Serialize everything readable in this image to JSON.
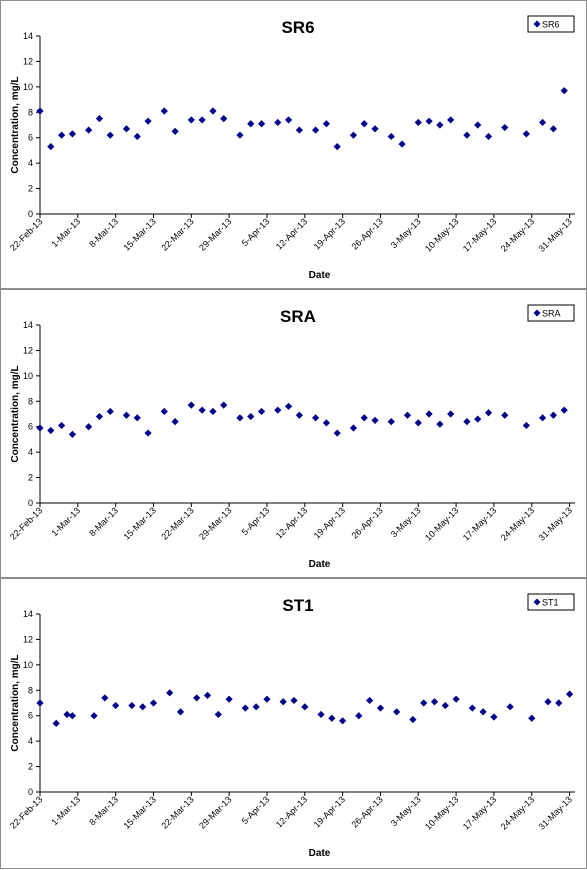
{
  "chart_data": [
    {
      "type": "scatter",
      "title": "SR6",
      "xlabel": "Date",
      "ylabel": "Concentration, mg/L",
      "ylim": [
        0,
        14
      ],
      "yticks": [
        "0",
        "2",
        "4",
        "6",
        "8",
        "10",
        "12",
        "14"
      ],
      "x_tick_labels": [
        "22-Feb-13",
        "1-Mar-13",
        "8-Mar-13",
        "15-Mar-13",
        "22-Mar-13",
        "29-Mar-13",
        "5-Apr-13",
        "12-Apr-13",
        "19-Apr-13",
        "26-Apr-13",
        "3-May-13",
        "10-May-13",
        "17-May-13",
        "24-May-13",
        "31-May-13"
      ],
      "xlim": [
        "2013-02-22",
        "2013-06-01"
      ],
      "grid": false,
      "legend_position": "top-right",
      "series": [
        {
          "name": "SR6",
          "color": "#00008b",
          "marker": "diamond",
          "x": [
            "2013-02-22",
            "2013-02-24",
            "2013-02-26",
            "2013-02-28",
            "2013-03-03",
            "2013-03-05",
            "2013-03-07",
            "2013-03-10",
            "2013-03-12",
            "2013-03-14",
            "2013-03-17",
            "2013-03-19",
            "2013-03-22",
            "2013-03-24",
            "2013-03-26",
            "2013-03-28",
            "2013-03-31",
            "2013-04-02",
            "2013-04-04",
            "2013-04-07",
            "2013-04-09",
            "2013-04-11",
            "2013-04-14",
            "2013-04-16",
            "2013-04-18",
            "2013-04-21",
            "2013-04-23",
            "2013-04-25",
            "2013-04-28",
            "2013-04-30",
            "2013-05-03",
            "2013-05-05",
            "2013-05-07",
            "2013-05-09",
            "2013-05-12",
            "2013-05-14",
            "2013-05-16",
            "2013-05-19",
            "2013-05-23",
            "2013-05-26",
            "2013-05-28",
            "2013-05-30"
          ],
          "y": [
            8.1,
            5.3,
            6.2,
            6.3,
            6.6,
            7.5,
            6.2,
            6.7,
            6.1,
            7.3,
            8.1,
            6.5,
            7.4,
            7.4,
            8.1,
            7.5,
            6.2,
            7.1,
            7.1,
            7.2,
            7.4,
            6.6,
            6.6,
            7.1,
            5.3,
            6.2,
            7.1,
            6.7,
            6.1,
            5.5,
            7.2,
            7.3,
            7.0,
            7.4,
            6.2,
            7.0,
            6.1,
            6.8,
            6.3,
            7.2,
            6.7,
            9.7
          ]
        }
      ]
    },
    {
      "type": "scatter",
      "title": "SRA",
      "xlabel": "Date",
      "ylabel": "Concentration, mg/L",
      "ylim": [
        0,
        14
      ],
      "yticks": [
        "0",
        "2",
        "4",
        "6",
        "8",
        "10",
        "12",
        "14"
      ],
      "x_tick_labels": [
        "22-Feb-13",
        "1-Mar-13",
        "8-Mar-13",
        "15-Mar-13",
        "22-Mar-13",
        "29-Mar-13",
        "5-Apr-13",
        "12-Apr-13",
        "19-Apr-13",
        "26-Apr-13",
        "3-May-13",
        "10-May-13",
        "17-May-13",
        "24-May-13",
        "31-May-13"
      ],
      "xlim": [
        "2013-02-22",
        "2013-06-01"
      ],
      "grid": false,
      "legend_position": "top-right",
      "series": [
        {
          "name": "SRA",
          "color": "#00008b",
          "marker": "diamond",
          "x": [
            "2013-02-22",
            "2013-02-24",
            "2013-02-26",
            "2013-02-28",
            "2013-03-03",
            "2013-03-05",
            "2013-03-07",
            "2013-03-10",
            "2013-03-12",
            "2013-03-14",
            "2013-03-17",
            "2013-03-19",
            "2013-03-22",
            "2013-03-24",
            "2013-03-26",
            "2013-03-28",
            "2013-03-31",
            "2013-04-02",
            "2013-04-04",
            "2013-04-07",
            "2013-04-09",
            "2013-04-11",
            "2013-04-14",
            "2013-04-16",
            "2013-04-18",
            "2013-04-21",
            "2013-04-23",
            "2013-04-25",
            "2013-04-28",
            "2013-05-01",
            "2013-05-03",
            "2013-05-05",
            "2013-05-07",
            "2013-05-09",
            "2013-05-12",
            "2013-05-14",
            "2013-05-16",
            "2013-05-19",
            "2013-05-23",
            "2013-05-26",
            "2013-05-28",
            "2013-05-30"
          ],
          "y": [
            5.9,
            5.7,
            6.1,
            5.4,
            6.0,
            6.8,
            7.2,
            6.9,
            6.7,
            5.5,
            7.2,
            6.4,
            7.7,
            7.3,
            7.2,
            7.7,
            6.7,
            6.8,
            7.2,
            7.3,
            7.6,
            6.9,
            6.7,
            6.3,
            5.5,
            5.9,
            6.7,
            6.5,
            6.4,
            6.9,
            6.3,
            7.0,
            6.2,
            7.0,
            6.4,
            6.6,
            7.1,
            6.9,
            6.1,
            6.7,
            6.9,
            7.3
          ]
        }
      ]
    },
    {
      "type": "scatter",
      "title": "ST1",
      "xlabel": "Date",
      "ylabel": "Concentration, mg/L",
      "ylim": [
        0,
        14
      ],
      "yticks": [
        "0",
        "2",
        "4",
        "6",
        "8",
        "10",
        "12",
        "14"
      ],
      "x_tick_labels": [
        "22-Feb-13",
        "1-Mar-13",
        "8-Mar-13",
        "15-Mar-13",
        "22-Mar-13",
        "29-Mar-13",
        "5-Apr-13",
        "12-Apr-13",
        "19-Apr-13",
        "26-Apr-13",
        "3-May-13",
        "10-May-13",
        "17-May-13",
        "24-May-13",
        "31-May-13"
      ],
      "xlim": [
        "2013-02-22",
        "2013-06-01"
      ],
      "grid": false,
      "legend_position": "top-right",
      "series": [
        {
          "name": "ST1",
          "color": "#00008b",
          "marker": "diamond",
          "x": [
            "2013-02-22",
            "2013-02-25",
            "2013-02-27",
            "2013-02-28",
            "2013-03-04",
            "2013-03-06",
            "2013-03-08",
            "2013-03-11",
            "2013-03-13",
            "2013-03-15",
            "2013-03-18",
            "2013-03-20",
            "2013-03-23",
            "2013-03-25",
            "2013-03-27",
            "2013-03-29",
            "2013-04-01",
            "2013-04-03",
            "2013-04-05",
            "2013-04-08",
            "2013-04-10",
            "2013-04-12",
            "2013-04-15",
            "2013-04-17",
            "2013-04-19",
            "2013-04-22",
            "2013-04-24",
            "2013-04-26",
            "2013-04-29",
            "2013-05-02",
            "2013-05-04",
            "2013-05-06",
            "2013-05-08",
            "2013-05-10",
            "2013-05-13",
            "2013-05-15",
            "2013-05-17",
            "2013-05-20",
            "2013-05-24",
            "2013-05-27",
            "2013-05-29",
            "2013-05-31"
          ],
          "y": [
            7.0,
            5.4,
            6.1,
            6.0,
            6.0,
            7.4,
            6.8,
            6.8,
            6.7,
            7.0,
            7.8,
            6.3,
            7.4,
            7.6,
            6.1,
            7.3,
            6.6,
            6.7,
            7.3,
            7.1,
            7.2,
            6.7,
            6.1,
            5.8,
            5.6,
            6.0,
            7.2,
            6.6,
            6.3,
            5.7,
            7.0,
            7.1,
            6.8,
            7.3,
            6.6,
            6.3,
            5.9,
            6.7,
            5.8,
            7.1,
            7.0,
            7.7
          ]
        }
      ]
    }
  ]
}
